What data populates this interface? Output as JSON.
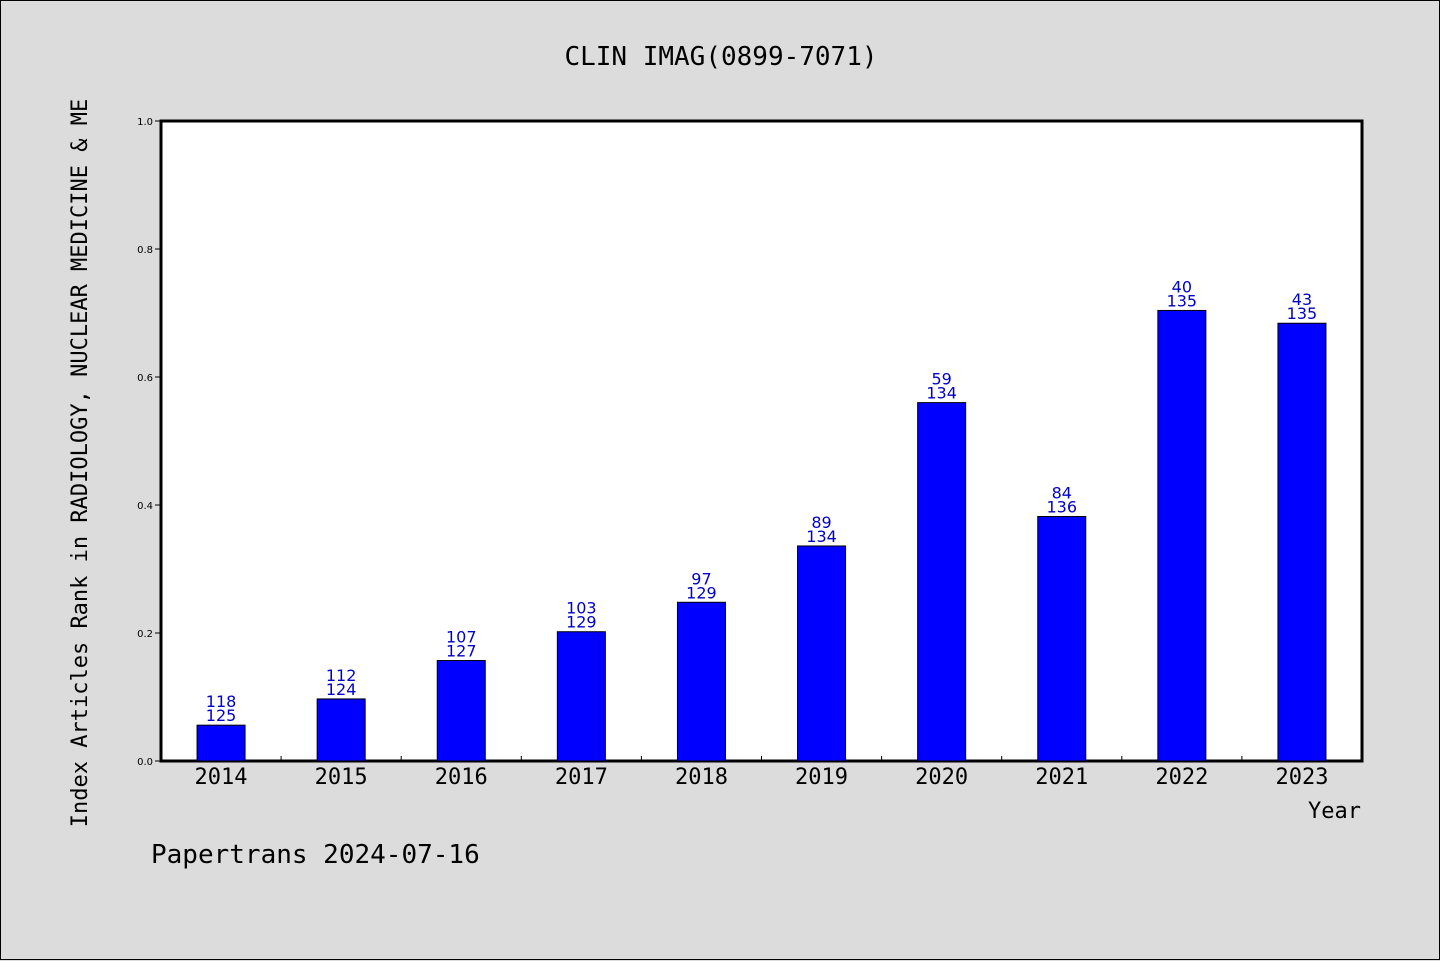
{
  "chart_data": {
    "type": "bar",
    "title": "CLIN IMAG(0899-7071)",
    "xlabel": "Year",
    "ylabel": "Index Articles Rank in RADIOLOGY, NUCLEAR MEDICINE & ME",
    "categories": [
      "2014",
      "2015",
      "2016",
      "2017",
      "2018",
      "2019",
      "2020",
      "2021",
      "2022",
      "2023"
    ],
    "values": [
      0.056,
      0.097,
      0.157,
      0.202,
      0.248,
      0.336,
      0.56,
      0.382,
      0.704,
      0.684
    ],
    "rank": [
      "118",
      "112",
      "107",
      "103",
      "97",
      "89",
      "59",
      "84",
      "40",
      "43"
    ],
    "total": [
      "125",
      "124",
      "127",
      "129",
      "129",
      "134",
      "134",
      "136",
      "135",
      "135"
    ],
    "ylim": [
      0,
      1.0
    ],
    "yticks": [
      "0.0",
      "0.2",
      "0.4",
      "0.6",
      "0.8",
      "1.0"
    ],
    "bar_color": "#0000ff",
    "label_color": "#0000cc",
    "grid": false
  },
  "footer": "Papertrans 2024-07-16"
}
